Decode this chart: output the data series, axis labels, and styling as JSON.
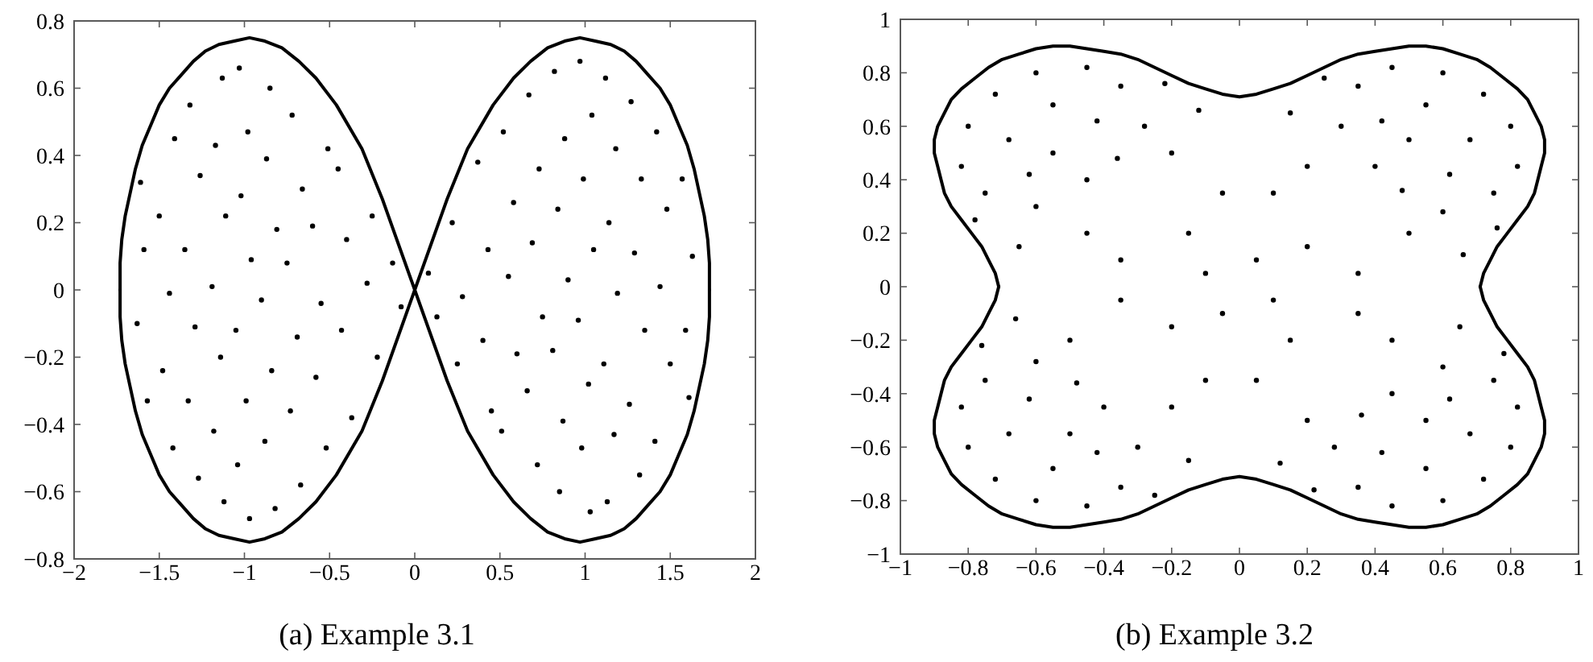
{
  "chart_data": [
    {
      "type": "scatter",
      "title": "(a) Example 3.1",
      "xlim": [
        -2,
        2
      ],
      "ylim": [
        -0.8,
        0.8
      ],
      "xticks": [
        -2,
        -1.5,
        -1,
        -0.5,
        0,
        0.5,
        1,
        1.5,
        2
      ],
      "yticks": [
        -0.8,
        -0.6,
        -0.4,
        -0.2,
        0,
        0.2,
        0.4,
        0.6,
        0.8
      ],
      "series": [
        {
          "type": "scatter",
          "color": "#000000",
          "marker": "circle",
          "x": [
            0.08,
            0.13,
            0.22,
            0.28,
            0.25,
            0.37,
            0.43,
            0.4,
            0.45,
            0.52,
            0.58,
            0.55,
            0.6,
            0.51,
            0.67,
            0.73,
            0.69,
            0.75,
            0.66,
            0.72,
            0.82,
            0.88,
            0.84,
            0.9,
            0.81,
            0.87,
            0.85,
            0.97,
            1.04,
            0.99,
            1.05,
            0.96,
            1.02,
            0.98,
            1.03,
            1.12,
            1.18,
            1.14,
            1.19,
            1.11,
            1.17,
            1.13,
            1.27,
            1.33,
            1.29,
            1.35,
            1.26,
            1.32,
            1.42,
            1.48,
            1.44,
            1.5,
            1.41,
            1.57,
            1.63,
            1.59,
            1.61,
            -0.08,
            -0.13,
            -0.22,
            -0.28,
            -0.25,
            -0.37,
            -0.43,
            -0.4,
            -0.45,
            -0.52,
            -0.58,
            -0.55,
            -0.6,
            -0.51,
            -0.67,
            -0.73,
            -0.69,
            -0.75,
            -0.66,
            -0.72,
            -0.82,
            -0.88,
            -0.84,
            -0.9,
            -0.81,
            -0.87,
            -0.85,
            -0.97,
            -1.04,
            -0.99,
            -1.05,
            -0.96,
            -1.02,
            -0.98,
            -1.03,
            -1.12,
            -1.18,
            -1.14,
            -1.19,
            -1.11,
            -1.17,
            -1.13,
            -1.27,
            -1.33,
            -1.29,
            -1.35,
            -1.26,
            -1.32,
            -1.42,
            -1.48,
            -1.44,
            -1.5,
            -1.41,
            -1.57,
            -1.63,
            -1.59,
            -1.61
          ],
          "values": [
            0.05,
            -0.08,
            0.2,
            -0.02,
            -0.22,
            0.38,
            0.12,
            -0.15,
            -0.36,
            0.47,
            0.26,
            0.04,
            -0.19,
            -0.42,
            0.58,
            0.36,
            0.14,
            -0.08,
            -0.3,
            -0.52,
            0.65,
            0.45,
            0.24,
            0.03,
            -0.18,
            -0.39,
            -0.6,
            0.68,
            0.52,
            0.33,
            0.12,
            -0.09,
            -0.28,
            -0.47,
            -0.66,
            0.63,
            0.42,
            0.2,
            -0.01,
            -0.22,
            -0.43,
            -0.63,
            0.56,
            0.33,
            0.11,
            -0.12,
            -0.34,
            -0.55,
            0.47,
            0.24,
            0.01,
            -0.22,
            -0.45,
            0.33,
            0.1,
            -0.12,
            -0.32,
            -0.05,
            0.08,
            -0.2,
            0.02,
            0.22,
            -0.38,
            -0.12,
            0.15,
            0.36,
            -0.47,
            -0.26,
            -0.04,
            0.19,
            0.42,
            -0.58,
            -0.36,
            -0.14,
            0.08,
            0.3,
            0.52,
            -0.65,
            -0.45,
            -0.24,
            -0.03,
            0.18,
            0.39,
            0.6,
            -0.68,
            -0.52,
            -0.33,
            -0.12,
            0.09,
            0.28,
            0.47,
            0.66,
            -0.63,
            -0.42,
            -0.2,
            0.01,
            0.22,
            0.43,
            0.63,
            -0.56,
            -0.33,
            -0.11,
            0.12,
            0.34,
            0.55,
            -0.47,
            -0.24,
            -0.01,
            0.22,
            0.45,
            -0.33,
            -0.1,
            0.12,
            0.32
          ]
        },
        {
          "type": "line",
          "color": "#000000",
          "x": [
            -1.73,
            -1.73,
            -1.72,
            -1.7,
            -1.67,
            -1.64,
            -1.6,
            -1.55,
            -1.5,
            -1.44,
            -1.37,
            -1.3,
            -1.23,
            -1.15,
            -1.06,
            -0.97,
            -0.88,
            -0.78,
            -0.68,
            -0.58,
            -0.46,
            -0.31,
            -0.19,
            0,
            0.19,
            0.31,
            0.46,
            0.58,
            0.68,
            0.78,
            0.88,
            0.97,
            1.06,
            1.15,
            1.23,
            1.3,
            1.37,
            1.44,
            1.5,
            1.55,
            1.6,
            1.64,
            1.67,
            1.7,
            1.72,
            1.73,
            1.73
          ],
          "values": [
            0,
            0.08,
            0.15,
            0.22,
            0.29,
            0.36,
            0.43,
            0.49,
            0.55,
            0.6,
            0.64,
            0.68,
            0.71,
            0.73,
            0.74,
            0.75,
            0.74,
            0.72,
            0.68,
            0.63,
            0.55,
            0.42,
            0.27,
            0,
            0.27,
            0.42,
            0.55,
            0.63,
            0.68,
            0.72,
            0.74,
            0.75,
            0.74,
            0.73,
            0.71,
            0.68,
            0.64,
            0.6,
            0.55,
            0.49,
            0.43,
            0.36,
            0.29,
            0.22,
            0.15,
            0.08,
            0
          ]
        },
        {
          "type": "line",
          "color": "#000000",
          "x": [
            -1.73,
            -1.73,
            -1.72,
            -1.7,
            -1.67,
            -1.64,
            -1.6,
            -1.55,
            -1.5,
            -1.44,
            -1.37,
            -1.3,
            -1.23,
            -1.15,
            -1.06,
            -0.97,
            -0.88,
            -0.78,
            -0.68,
            -0.58,
            -0.46,
            -0.31,
            -0.19,
            0,
            0.19,
            0.31,
            0.46,
            0.58,
            0.68,
            0.78,
            0.88,
            0.97,
            1.06,
            1.15,
            1.23,
            1.3,
            1.37,
            1.44,
            1.5,
            1.55,
            1.6,
            1.64,
            1.67,
            1.7,
            1.72,
            1.73,
            1.73
          ],
          "values": [
            0,
            -0.08,
            -0.15,
            -0.22,
            -0.29,
            -0.36,
            -0.43,
            -0.49,
            -0.55,
            -0.6,
            -0.64,
            -0.68,
            -0.71,
            -0.73,
            -0.74,
            -0.75,
            -0.74,
            -0.72,
            -0.68,
            -0.63,
            -0.55,
            -0.42,
            -0.27,
            0,
            -0.27,
            -0.42,
            -0.55,
            -0.63,
            -0.68,
            -0.72,
            -0.74,
            -0.75,
            -0.74,
            -0.73,
            -0.71,
            -0.68,
            -0.64,
            -0.6,
            -0.55,
            -0.49,
            -0.43,
            -0.36,
            -0.29,
            -0.22,
            -0.15,
            -0.08,
            0
          ]
        }
      ]
    },
    {
      "type": "scatter",
      "title": "(b) Example 3.2",
      "xlim": [
        -1,
        1
      ],
      "ylim": [
        -1,
        1
      ],
      "xticks": [
        -1,
        -0.8,
        -0.6,
        -0.4,
        -0.2,
        0,
        0.2,
        0.4,
        0.6,
        0.8,
        1
      ],
      "yticks": [
        -1,
        -0.8,
        -0.6,
        -0.4,
        -0.2,
        0,
        0.2,
        0.4,
        0.6,
        0.8,
        1
      ],
      "series": [
        {
          "type": "scatter",
          "color": "#000000",
          "marker": "circle",
          "x": [
            0.45,
            0.6,
            0.72,
            0.8,
            0.82,
            0.35,
            0.55,
            0.68,
            0.75,
            0.5,
            0.62,
            0.42,
            0.3,
            0.6,
            0.4,
            0.48,
            0.25,
            0.76,
            0.2,
            0.5,
            0.15,
            0.66,
            0.05,
            0.2,
            0.1,
            0.35,
            -0.82,
            -0.8,
            -0.72,
            -0.6,
            -0.45,
            -0.75,
            -0.68,
            -0.55,
            -0.35,
            -0.55,
            -0.42,
            -0.62,
            -0.6,
            -0.28,
            -0.45,
            -0.36,
            -0.78,
            -0.22,
            -0.45,
            -0.2,
            -0.65,
            -0.12,
            -0.1,
            -0.15,
            -0.35,
            -0.05,
            -0.45,
            -0.6,
            -0.72,
            -0.8,
            -0.82,
            -0.35,
            -0.55,
            -0.68,
            -0.75,
            -0.5,
            -0.62,
            -0.42,
            -0.3,
            -0.6,
            -0.4,
            -0.48,
            -0.25,
            -0.76,
            -0.2,
            -0.5,
            -0.15,
            -0.66,
            -0.05,
            -0.2,
            -0.1,
            -0.35,
            0.82,
            0.8,
            0.72,
            0.6,
            0.45,
            0.75,
            0.68,
            0.55,
            0.35,
            0.55,
            0.42,
            0.62,
            0.6,
            0.28,
            0.45,
            0.36,
            0.78,
            0.22,
            0.45,
            0.2,
            0.65,
            0.12,
            0.1,
            0.15,
            0.35,
            0.05
          ],
          "values": [
            0.82,
            0.8,
            0.72,
            0.6,
            0.45,
            0.75,
            0.68,
            0.55,
            0.35,
            0.55,
            0.42,
            0.62,
            0.6,
            0.28,
            0.45,
            0.36,
            0.78,
            0.22,
            0.45,
            0.2,
            0.65,
            0.12,
            0.1,
            0.15,
            0.35,
            0.05,
            0.45,
            0.6,
            0.72,
            0.8,
            0.82,
            0.35,
            0.55,
            0.68,
            0.75,
            0.5,
            0.62,
            0.42,
            0.3,
            0.6,
            0.4,
            0.48,
            0.25,
            0.76,
            0.2,
            0.5,
            0.15,
            0.66,
            0.05,
            0.2,
            0.1,
            0.35,
            -0.82,
            -0.8,
            -0.72,
            -0.6,
            -0.45,
            -0.75,
            -0.68,
            -0.55,
            -0.35,
            -0.55,
            -0.42,
            -0.62,
            -0.6,
            -0.28,
            -0.45,
            -0.36,
            -0.78,
            -0.22,
            -0.45,
            -0.2,
            -0.65,
            -0.12,
            -0.1,
            -0.15,
            -0.35,
            -0.05,
            -0.45,
            -0.6,
            -0.72,
            -0.8,
            -0.82,
            -0.35,
            -0.55,
            -0.68,
            -0.75,
            -0.5,
            -0.62,
            -0.42,
            -0.3,
            -0.6,
            -0.4,
            -0.48,
            -0.25,
            -0.76,
            -0.2,
            -0.5,
            -0.15,
            -0.66,
            -0.05,
            -0.2,
            -0.1,
            -0.35
          ]
        },
        {
          "type": "line",
          "color": "#000000",
          "x": [
            0.71,
            0.72,
            0.74,
            0.76,
            0.79,
            0.82,
            0.85,
            0.87,
            0.88,
            0.89,
            0.9,
            0.9,
            0.89,
            0.87,
            0.85,
            0.82,
            0.78,
            0.74,
            0.7,
            0.65,
            0.6,
            0.55,
            0.5,
            0.45,
            0.4,
            0.35,
            0.3,
            0.25,
            0.2,
            0.15,
            0.1,
            0.05,
            0,
            -0.05,
            -0.1,
            -0.15,
            -0.2,
            -0.25,
            -0.3,
            -0.35,
            -0.4,
            -0.45,
            -0.5,
            -0.55,
            -0.6,
            -0.65,
            -0.7,
            -0.74,
            -0.78,
            -0.82,
            -0.85,
            -0.87,
            -0.89,
            -0.9,
            -0.9,
            -0.89,
            -0.88,
            -0.87,
            -0.85,
            -0.82,
            -0.79,
            -0.76,
            -0.74,
            -0.72,
            -0.71
          ],
          "values": [
            0,
            0.05,
            0.1,
            0.15,
            0.2,
            0.25,
            0.3,
            0.35,
            0.4,
            0.45,
            0.5,
            0.55,
            0.6,
            0.65,
            0.7,
            0.74,
            0.78,
            0.82,
            0.85,
            0.87,
            0.89,
            0.9,
            0.9,
            0.89,
            0.88,
            0.87,
            0.85,
            0.82,
            0.79,
            0.76,
            0.74,
            0.72,
            0.71,
            0.72,
            0.74,
            0.76,
            0.79,
            0.82,
            0.85,
            0.87,
            0.88,
            0.89,
            0.9,
            0.9,
            0.89,
            0.87,
            0.85,
            0.82,
            0.78,
            0.74,
            0.7,
            0.65,
            0.6,
            0.55,
            0.5,
            0.45,
            0.4,
            0.35,
            0.3,
            0.25,
            0.2,
            0.15,
            0.1,
            0.05,
            0
          ]
        },
        {
          "type": "line",
          "color": "#000000",
          "x": [
            0.71,
            0.72,
            0.74,
            0.76,
            0.79,
            0.82,
            0.85,
            0.87,
            0.88,
            0.89,
            0.9,
            0.9,
            0.89,
            0.87,
            0.85,
            0.82,
            0.78,
            0.74,
            0.7,
            0.65,
            0.6,
            0.55,
            0.5,
            0.45,
            0.4,
            0.35,
            0.3,
            0.25,
            0.2,
            0.15,
            0.1,
            0.05,
            0,
            -0.05,
            -0.1,
            -0.15,
            -0.2,
            -0.25,
            -0.3,
            -0.35,
            -0.4,
            -0.45,
            -0.5,
            -0.55,
            -0.6,
            -0.65,
            -0.7,
            -0.74,
            -0.78,
            -0.82,
            -0.85,
            -0.87,
            -0.89,
            -0.9,
            -0.9,
            -0.89,
            -0.88,
            -0.87,
            -0.85,
            -0.82,
            -0.79,
            -0.76,
            -0.74,
            -0.72,
            -0.71
          ],
          "values": [
            0,
            -0.05,
            -0.1,
            -0.15,
            -0.2,
            -0.25,
            -0.3,
            -0.35,
            -0.4,
            -0.45,
            -0.5,
            -0.55,
            -0.6,
            -0.65,
            -0.7,
            -0.74,
            -0.78,
            -0.82,
            -0.85,
            -0.87,
            -0.89,
            -0.9,
            -0.9,
            -0.89,
            -0.88,
            -0.87,
            -0.85,
            -0.82,
            -0.79,
            -0.76,
            -0.74,
            -0.72,
            -0.71,
            -0.72,
            -0.74,
            -0.76,
            -0.79,
            -0.82,
            -0.85,
            -0.87,
            -0.88,
            -0.89,
            -0.9,
            -0.9,
            -0.89,
            -0.87,
            -0.85,
            -0.82,
            -0.78,
            -0.74,
            -0.7,
            -0.65,
            -0.6,
            -0.55,
            -0.5,
            -0.45,
            -0.4,
            -0.35,
            -0.3,
            -0.25,
            -0.2,
            -0.15,
            -0.1,
            -0.05,
            0
          ]
        }
      ]
    }
  ]
}
